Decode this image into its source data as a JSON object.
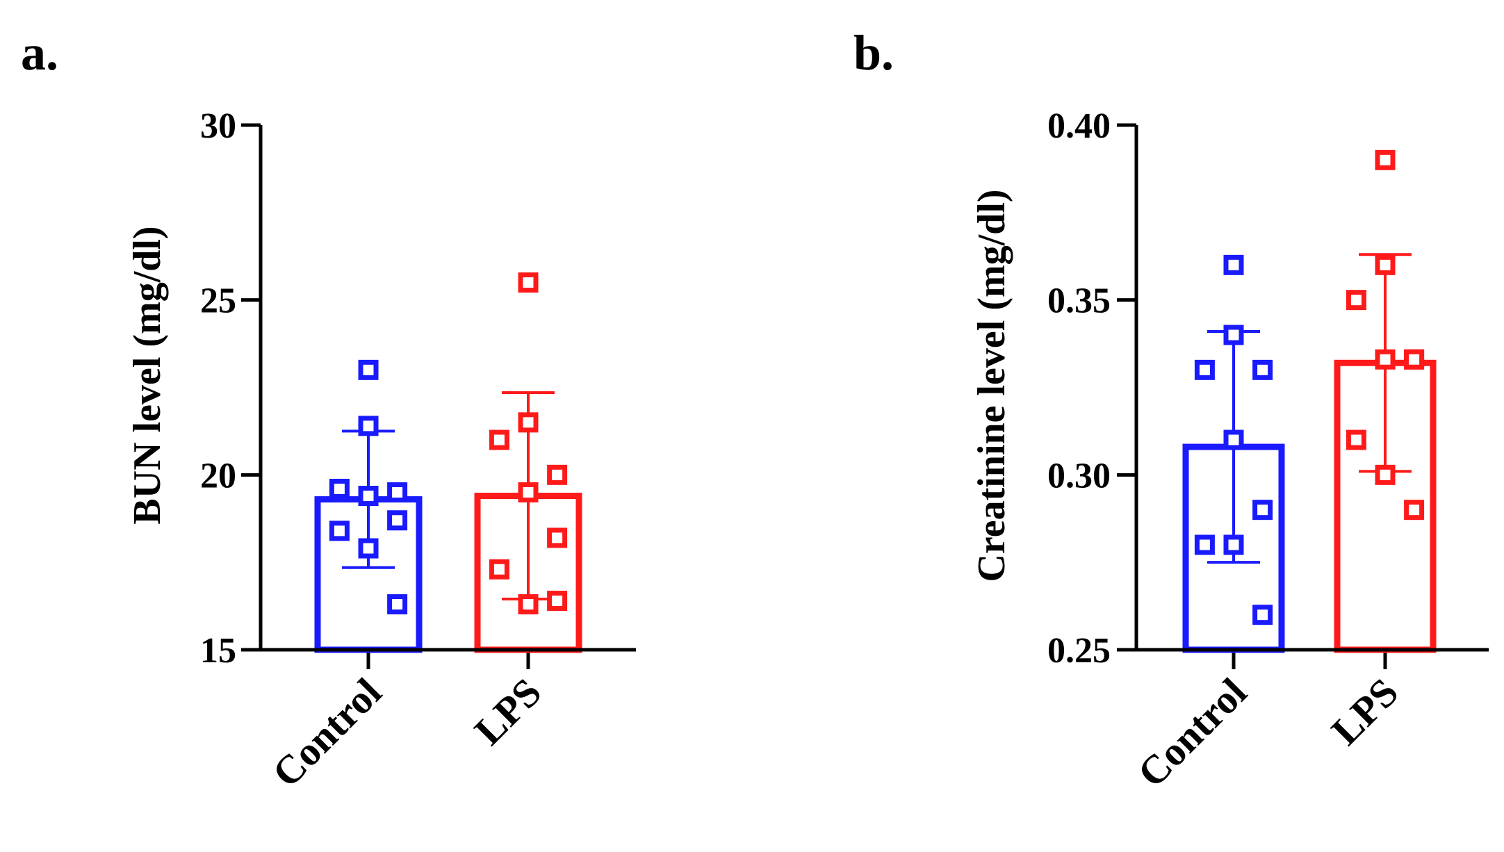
{
  "chart_data": [
    {
      "panel_label": "a.",
      "type": "bar",
      "title": "",
      "ylabel": "BUN level (mg/dl)",
      "xlabel": "",
      "ylim": [
        15,
        30
      ],
      "yticks": [
        15,
        20,
        25,
        30
      ],
      "categories": [
        "Control",
        "LPS"
      ],
      "colors": [
        "#1a1aff",
        "#ff1a1a"
      ],
      "means": [
        19.3,
        19.4
      ],
      "sd": [
        1.95,
        2.95
      ],
      "points": [
        [
          23.0,
          21.4,
          19.6,
          19.5,
          19.4,
          18.7,
          18.4,
          17.9,
          16.3
        ],
        [
          25.5,
          21.5,
          21.0,
          20.0,
          19.5,
          18.2,
          17.3,
          16.3,
          16.4
        ]
      ],
      "grid": false
    },
    {
      "panel_label": "b.",
      "type": "bar",
      "title": "",
      "ylabel": "Creatinine level (mg/dl)",
      "xlabel": "",
      "ylim": [
        0.25,
        0.4
      ],
      "yticks": [
        "0.25",
        "0.30",
        "0.35",
        "0.40"
      ],
      "categories": [
        "Control",
        "LPS"
      ],
      "colors": [
        "#1a1aff",
        "#ff1a1a"
      ],
      "means": [
        0.308,
        0.332
      ],
      "sd": [
        0.033,
        0.031
      ],
      "points": [
        [
          0.36,
          0.34,
          0.33,
          0.33,
          0.31,
          0.29,
          0.28,
          0.28,
          0.26
        ],
        [
          0.39,
          0.36,
          0.35,
          0.333,
          0.333,
          0.333,
          0.31,
          0.3,
          0.29
        ]
      ],
      "grid": false
    }
  ]
}
